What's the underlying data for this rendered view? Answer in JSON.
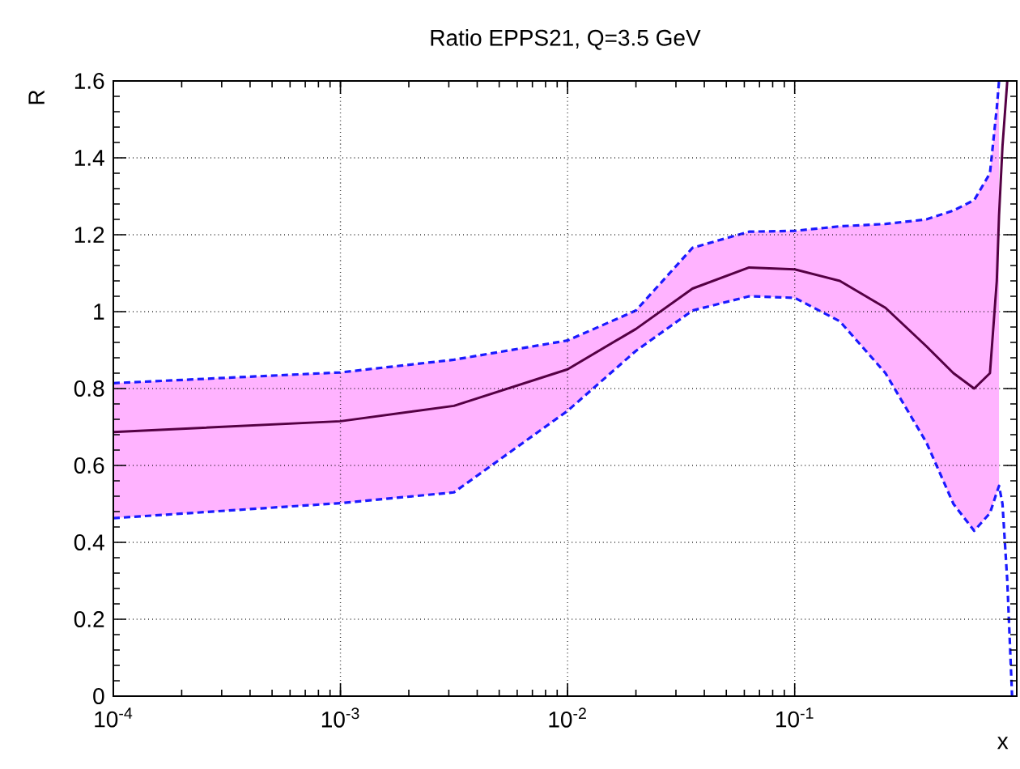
{
  "chart_data": {
    "type": "line",
    "title": "Ratio EPPS21,  Q=3.5 GeV",
    "xlabel": "x",
    "ylabel": "R",
    "log": "x",
    "grid": true,
    "marker": "none",
    "line_style": "solid",
    "xlim": [
      0.0001,
      0.95
    ],
    "ylim": [
      0,
      1.6
    ],
    "xticks": [
      {
        "value": 0.0001,
        "label": "10$^{-4}$"
      },
      {
        "value": 0.001,
        "label": "10$^{-3}$"
      },
      {
        "value": 0.01,
        "label": "10$^{-2}$"
      },
      {
        "value": 0.1,
        "label": "10$^{-1}$"
      }
    ],
    "yticks": [
      0,
      0.2,
      0.4,
      0.6,
      0.8,
      1,
      1.2,
      1.4,
      1.6
    ],
    "x": [
      0.0001,
      0.001,
      0.00316,
      0.01,
      0.02,
      0.0355,
      0.063,
      0.1,
      0.158,
      0.251,
      0.38,
      0.5,
      0.617,
      0.724,
      0.776,
      0.794,
      0.822,
      0.863
    ],
    "series": [
      {
        "color": "#550044",
        "values": [
          0.687,
          0.715,
          0.755,
          0.85,
          0.955,
          1.06,
          1.115,
          1.11,
          1.08,
          1.01,
          0.91,
          0.84,
          0.8,
          0.84,
          1.08,
          1.25,
          1.43,
          1.6
        ],
        "upper": [
          0.814,
          0.842,
          0.875,
          0.925,
          1.003,
          1.166,
          1.208,
          1.21,
          1.222,
          1.228,
          1.24,
          1.263,
          1.29,
          1.36,
          1.53,
          1.6,
          null,
          null
        ],
        "lower": [
          0.463,
          0.502,
          0.53,
          0.742,
          0.898,
          1.003,
          1.04,
          1.036,
          0.975,
          0.84,
          0.66,
          0.5,
          0.43,
          0.476,
          0.53,
          0.547,
          null,
          null
        ]
      },
      {
        "color": "#1a1aff",
        "line_style": "dashed",
        "x": [
          0.0001,
          0.001,
          0.00316,
          0.01,
          0.02,
          0.0355,
          0.063,
          0.1,
          0.158,
          0.251,
          0.38,
          0.5,
          0.617,
          0.724,
          0.776,
          0.794
        ],
        "values": [
          0.814,
          0.842,
          0.875,
          0.925,
          1.003,
          1.166,
          1.208,
          1.21,
          1.222,
          1.228,
          1.24,
          1.263,
          1.29,
          1.36,
          1.53,
          1.6
        ]
      },
      {
        "color": "#1a1aff",
        "line_style": "dashed",
        "x": [
          0.0001,
          0.001,
          0.00316,
          0.01,
          0.02,
          0.0355,
          0.063,
          0.1,
          0.158,
          0.251,
          0.38,
          0.5,
          0.617,
          0.724,
          0.776,
          0.794,
          0.822,
          0.863,
          0.906
        ],
        "values": [
          0.463,
          0.502,
          0.53,
          0.742,
          0.898,
          1.003,
          1.04,
          1.036,
          0.975,
          0.84,
          0.66,
          0.5,
          0.43,
          0.476,
          0.53,
          0.547,
          0.5,
          0.3,
          0.0
        ]
      }
    ]
  }
}
